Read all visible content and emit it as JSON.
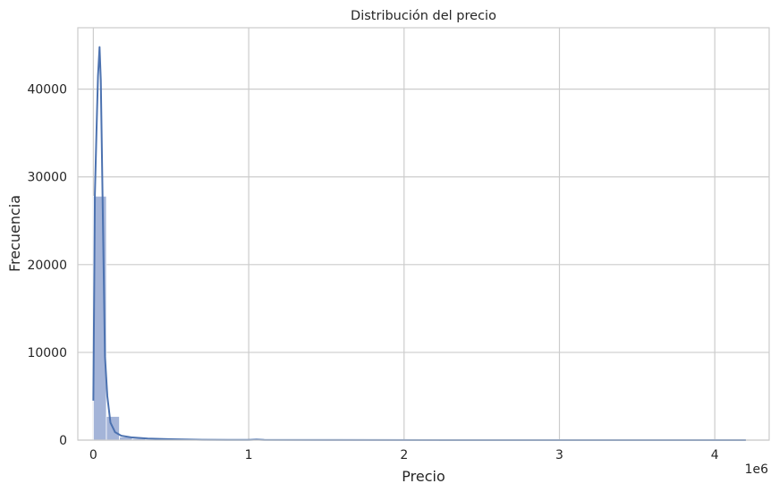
{
  "chart_data": {
    "type": "bar",
    "title": "Distribución del precio",
    "xlabel": "Precio",
    "ylabel": "Frecuencia",
    "offset_label": "1e6",
    "x_scale_factor": 1000000,
    "xlim": [
      -100000,
      4350000
    ],
    "ylim": [
      0,
      47000
    ],
    "grid": true,
    "x_ticks": [
      {
        "value": 0,
        "label": "0"
      },
      {
        "value": 1000000,
        "label": "1"
      },
      {
        "value": 2000000,
        "label": "2"
      },
      {
        "value": 3000000,
        "label": "3"
      },
      {
        "value": 4000000,
        "label": "4"
      }
    ],
    "y_ticks": [
      {
        "value": 0,
        "label": "0"
      },
      {
        "value": 10000,
        "label": "10000"
      },
      {
        "value": 20000,
        "label": "20000"
      },
      {
        "value": 30000,
        "label": "30000"
      },
      {
        "value": 40000,
        "label": "40000"
      }
    ],
    "bin_width": 84000,
    "bins": [
      {
        "x0": 0,
        "x1": 84000,
        "count": 27800
      },
      {
        "x0": 84000,
        "x1": 168000,
        "count": 2700
      },
      {
        "x0": 168000,
        "x1": 252000,
        "count": 350
      },
      {
        "x0": 252000,
        "x1": 336000,
        "count": 180
      },
      {
        "x0": 336000,
        "x1": 420000,
        "count": 100
      },
      {
        "x0": 420000,
        "x1": 504000,
        "count": 80
      },
      {
        "x0": 504000,
        "x1": 588000,
        "count": 60
      },
      {
        "x0": 588000,
        "x1": 672000,
        "count": 30
      },
      {
        "x0": 672000,
        "x1": 756000,
        "count": 20
      },
      {
        "x0": 756000,
        "x1": 840000,
        "count": 15
      },
      {
        "x0": 840000,
        "x1": 924000,
        "count": 10
      },
      {
        "x0": 924000,
        "x1": 1008000,
        "count": 10
      },
      {
        "x0": 1008000,
        "x1": 1092000,
        "count": 60
      },
      {
        "x0": 1092000,
        "x1": 1176000,
        "count": 8
      },
      {
        "x0": 4116000,
        "x1": 4200000,
        "count": 5
      }
    ],
    "kde": {
      "x": [
        0,
        10000,
        20000,
        30000,
        40000,
        48000,
        60000,
        75000,
        90000,
        110000,
        140000,
        180000,
        250000,
        350000,
        500000,
        700000,
        1000000,
        1050000,
        1100000,
        1500000,
        2500000,
        3500000,
        4200000
      ],
      "y": [
        4500,
        28000,
        35000,
        41500,
        44800,
        41000,
        27000,
        9500,
        5000,
        2000,
        900,
        500,
        300,
        180,
        100,
        40,
        20,
        60,
        20,
        10,
        5,
        5,
        5
      ]
    },
    "colors": {
      "bar_fill": "#a4b4d8",
      "bar_edge": "#ffffff",
      "kde_line": "#4c72b0"
    }
  }
}
